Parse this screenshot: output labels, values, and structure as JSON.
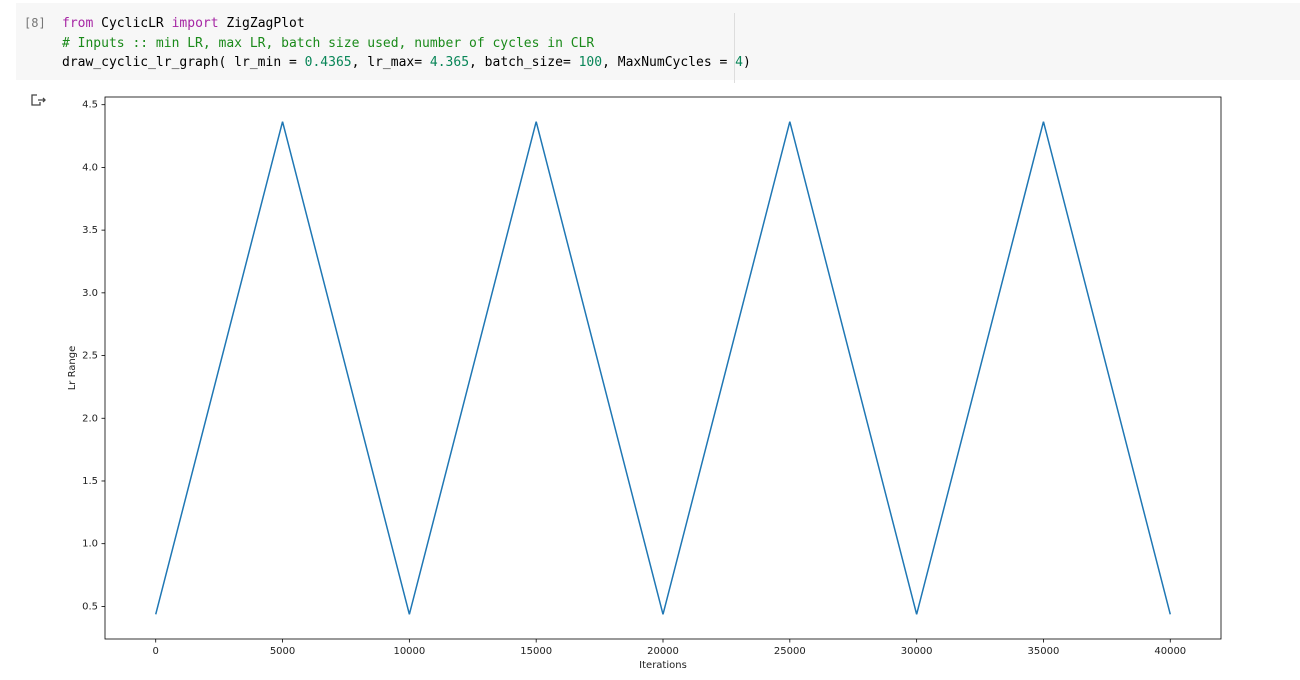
{
  "cell": {
    "prompt": "[8]",
    "lines": [
      [
        {
          "text": "from",
          "color": "#a626a4"
        },
        {
          "text": " CyclicLR ",
          "color": "#000000"
        },
        {
          "text": "import",
          "color": "#a626a4"
        },
        {
          "text": " ZigZagPlot",
          "color": "#000000"
        }
      ],
      [
        {
          "text": "# Inputs :: min LR, max LR, batch size used, number of cycles in CLR",
          "color": "#1a8a1a"
        }
      ],
      [
        {
          "text": "draw_cyclic_lr_graph( lr_min = ",
          "color": "#000000"
        },
        {
          "text": "0.4365",
          "color": "#098658"
        },
        {
          "text": ", lr_max= ",
          "color": "#000000"
        },
        {
          "text": "4.365",
          "color": "#098658"
        },
        {
          "text": ", batch_size= ",
          "color": "#000000"
        },
        {
          "text": "100",
          "color": "#098658"
        },
        {
          "text": ", MaxNumCycles = ",
          "color": "#000000"
        },
        {
          "text": "4",
          "color": "#098658"
        },
        {
          "text": ")",
          "color": "#000000"
        }
      ]
    ]
  },
  "chart_data": {
    "type": "line",
    "xlabel": "Iterations",
    "ylabel": "Lr Range",
    "color": "#1f77b4",
    "x": [
      0,
      5000,
      10000,
      15000,
      20000,
      25000,
      30000,
      35000,
      40000
    ],
    "values": [
      0.4365,
      4.365,
      0.4365,
      4.365,
      0.4365,
      4.365,
      0.4365,
      4.365,
      0.4365
    ],
    "xlim": [
      -2000,
      42000
    ],
    "ylim": [
      0.2401,
      4.5614
    ],
    "xticks": [
      0,
      5000,
      10000,
      15000,
      20000,
      25000,
      30000,
      35000,
      40000
    ],
    "yticks": [
      0.5,
      {
        "value": 1,
        "label": "1.0"
      },
      1.5,
      {
        "value": 2,
        "label": "2.0"
      },
      2.5,
      {
        "value": 3,
        "label": "3.0"
      },
      3.5,
      {
        "value": 4,
        "label": "4.0"
      },
      4.5
    ]
  }
}
